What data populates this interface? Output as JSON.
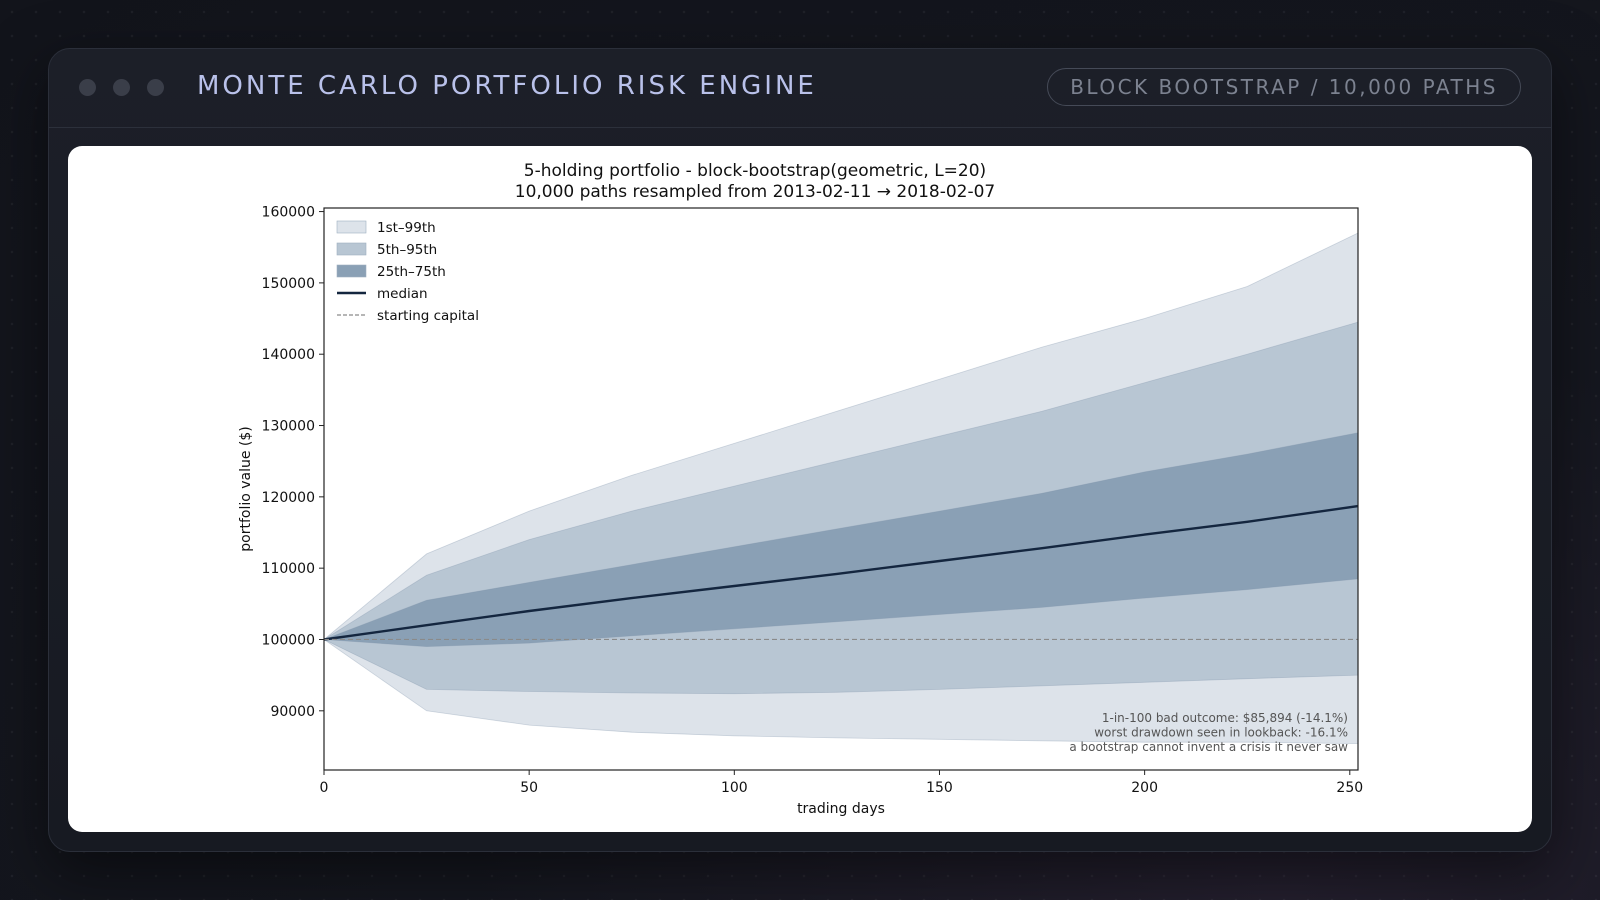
{
  "header": {
    "title": "MONTE CARLO PORTFOLIO RISK ENGINE",
    "badge": "BLOCK BOOTSTRAP / 10,000 PATHS"
  },
  "chart_data": {
    "type": "area",
    "title": "5-holding portfolio - block-bootstrap(geometric, L=20)",
    "subtitle": "10,000 paths resampled from 2013-02-11 → 2018-02-07",
    "xlabel": "trading days",
    "ylabel": "portfolio value ($)",
    "xlim": [
      0,
      252
    ],
    "ylim": [
      81700,
      160500
    ],
    "xticks": [
      0,
      50,
      100,
      150,
      200,
      250
    ],
    "yticks": [
      90000,
      100000,
      110000,
      120000,
      130000,
      140000,
      150000,
      160000
    ],
    "x": [
      0,
      25,
      50,
      75,
      100,
      125,
      150,
      175,
      200,
      225,
      252
    ],
    "series": [
      {
        "name": "1st–99th",
        "kind": "band",
        "color": "#dde3ea",
        "lower": [
          100000,
          90000,
          88000,
          87000,
          86500,
          86200,
          86000,
          85800,
          85600,
          85600,
          85400
        ],
        "upper": [
          100000,
          112000,
          118000,
          123000,
          127500,
          132000,
          136500,
          141000,
          145000,
          149500,
          157000
        ]
      },
      {
        "name": "5th–95th",
        "kind": "band",
        "color": "#b8c6d3",
        "lower": [
          100000,
          93000,
          92700,
          92500,
          92400,
          92600,
          93000,
          93500,
          94000,
          94500,
          95000
        ],
        "upper": [
          100000,
          109000,
          114000,
          118000,
          121500,
          125000,
          128500,
          132000,
          136000,
          140000,
          144500
        ]
      },
      {
        "name": "25th–75th",
        "kind": "band",
        "color": "#8aa0b5",
        "lower": [
          100000,
          99000,
          99500,
          100500,
          101500,
          102500,
          103500,
          104500,
          105800,
          107000,
          108500
        ],
        "upper": [
          100000,
          105500,
          108000,
          110500,
          113000,
          115500,
          118000,
          120500,
          123500,
          126000,
          129000
        ]
      },
      {
        "name": "median",
        "kind": "line",
        "color": "#14263f",
        "values": [
          100000,
          102000,
          104000,
          105800,
          107500,
          109200,
          111000,
          112800,
          114700,
          116500,
          118700
        ]
      },
      {
        "name": "starting capital",
        "kind": "hline",
        "color": "#8a8a8a",
        "value": 100000
      }
    ],
    "legend_position": "top-left",
    "annotations": [
      "1-in-100 bad outcome: $85,894 (-14.1%)",
      "worst drawdown seen in lookback: -16.1%",
      "a bootstrap cannot invent a crisis it never saw"
    ]
  }
}
